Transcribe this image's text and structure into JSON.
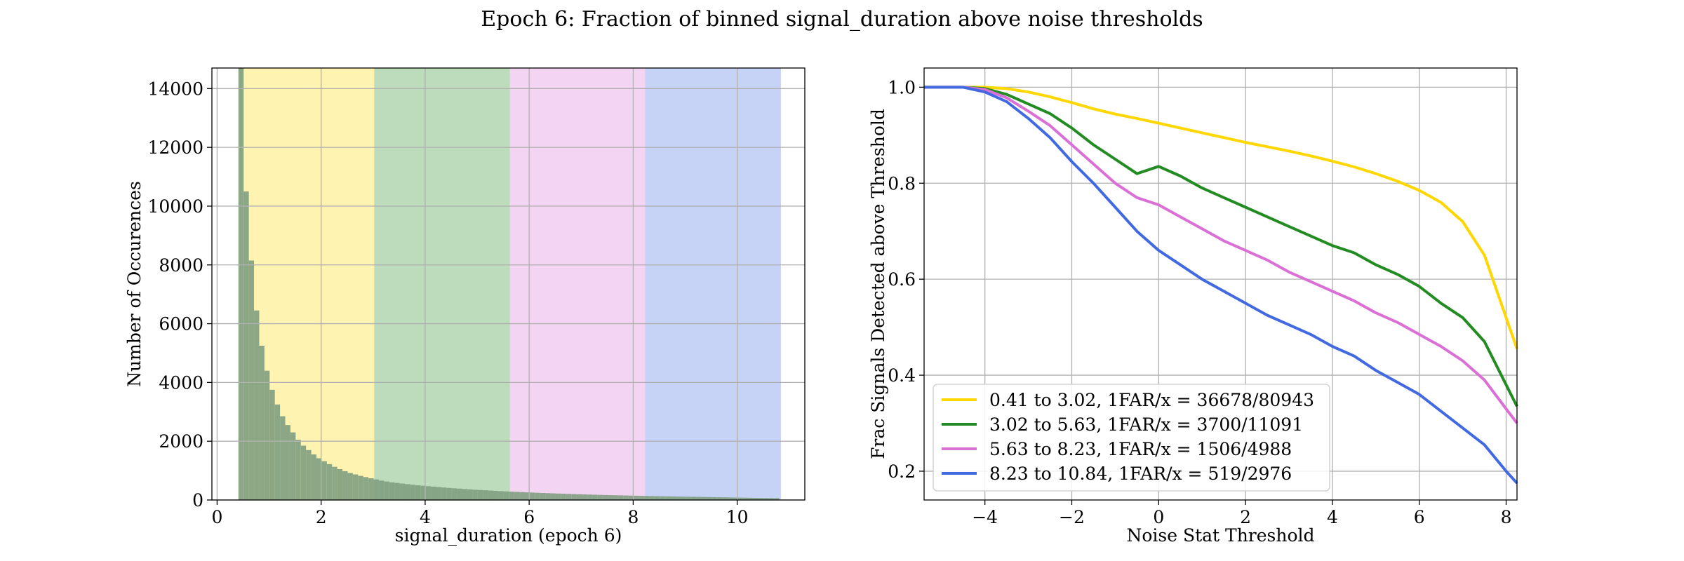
{
  "figure": {
    "title": "Epoch 6: Fraction of binned signal_duration above noise thresholds"
  },
  "chart_data": [
    {
      "type": "bar",
      "title": "",
      "xlabel": "signal_duration (epoch 6)",
      "ylabel": "Number of Occurences",
      "xlim": [
        -0.1,
        11.3
      ],
      "ylim": [
        0,
        14700
      ],
      "xticks": [
        0,
        2,
        4,
        6,
        8,
        10
      ],
      "yticks": [
        0,
        2000,
        4000,
        6000,
        8000,
        10000,
        12000,
        14000
      ],
      "grid": true,
      "histogram_color": "#7f9f7f",
      "threshold_bands": [
        {
          "from": 0.41,
          "to": 3.02,
          "color": "#ffd700"
        },
        {
          "from": 3.02,
          "to": 5.63,
          "color": "#228b22"
        },
        {
          "from": 5.63,
          "to": 8.23,
          "color": "#da70d6"
        },
        {
          "from": 8.23,
          "to": 10.84,
          "color": "#4169e1"
        }
      ],
      "bin_width": 0.1,
      "bins_start": 0.41,
      "bin_counts": [
        14700,
        10500,
        8150,
        6450,
        5250,
        4400,
        3750,
        3250,
        2850,
        2550,
        2300,
        2050,
        1850,
        1700,
        1550,
        1420,
        1320,
        1220,
        1130,
        1050,
        980,
        920,
        870,
        820,
        780,
        740,
        700,
        660,
        630,
        600,
        580,
        560,
        540,
        520,
        500,
        485,
        470,
        455,
        440,
        425,
        410,
        398,
        386,
        374,
        362,
        350,
        340,
        330,
        320,
        310,
        300,
        292,
        284,
        276,
        268,
        260,
        253,
        246,
        239,
        232,
        225,
        219,
        213,
        207,
        201,
        195,
        190,
        185,
        180,
        175,
        170,
        165,
        161,
        157,
        153,
        149,
        145,
        141,
        137,
        133,
        129,
        126,
        123,
        120,
        117,
        114,
        111,
        108,
        105,
        102,
        99,
        96,
        93,
        90,
        87,
        84,
        81,
        78,
        75,
        72,
        70,
        68,
        66,
        64
      ]
    },
    {
      "type": "line",
      "title": "",
      "xlabel": "Noise Stat Threshold",
      "ylabel": "Frac Signals Detected above Threshold",
      "xlim": [
        -5.4,
        8.25
      ],
      "ylim": [
        0.14,
        1.04
      ],
      "xticks": [
        -4,
        -2,
        0,
        2,
        4,
        6,
        8
      ],
      "xtick_labels": [
        "−4",
        "−2",
        "0",
        "2",
        "4",
        "6",
        "8"
      ],
      "yticks": [
        0.2,
        0.4,
        0.6,
        0.8,
        1.0
      ],
      "ytick_labels": [
        "0.2",
        "0.4",
        "0.6",
        "0.8",
        "1.0"
      ],
      "grid": true,
      "legend_position": "lower-left",
      "x": [
        -5.4,
        -5,
        -4.5,
        -4,
        -3.5,
        -3,
        -2.5,
        -2,
        -1.5,
        -1,
        -0.5,
        0,
        0.5,
        1,
        1.5,
        2,
        2.5,
        3,
        3.5,
        4,
        4.5,
        5,
        5.5,
        6,
        6.5,
        7,
        7.5,
        8,
        8.25
      ],
      "series": [
        {
          "name": "0.41 to 3.02, 1FAR/x = 36678/80943",
          "color": "#ffd700",
          "values": [
            1.0,
            1.0,
            1.0,
            1.0,
            0.997,
            0.99,
            0.98,
            0.968,
            0.955,
            0.944,
            0.935,
            0.925,
            0.915,
            0.905,
            0.895,
            0.885,
            0.876,
            0.867,
            0.857,
            0.846,
            0.834,
            0.82,
            0.804,
            0.785,
            0.76,
            0.72,
            0.65,
            0.52,
            0.455
          ]
        },
        {
          "name": "3.02 to 5.63, 1FAR/x = 3700/11091",
          "color": "#228b22",
          "values": [
            1.0,
            1.0,
            1.0,
            0.997,
            0.985,
            0.965,
            0.945,
            0.915,
            0.88,
            0.85,
            0.82,
            0.835,
            0.815,
            0.79,
            0.77,
            0.75,
            0.73,
            0.71,
            0.69,
            0.67,
            0.655,
            0.63,
            0.61,
            0.585,
            0.55,
            0.52,
            0.47,
            0.38,
            0.335
          ]
        },
        {
          "name": "5.63 to 8.23, 1FAR/x = 1506/4988",
          "color": "#da70d6",
          "values": [
            1.0,
            1.0,
            1.0,
            0.995,
            0.978,
            0.95,
            0.92,
            0.88,
            0.84,
            0.8,
            0.77,
            0.755,
            0.73,
            0.705,
            0.68,
            0.66,
            0.64,
            0.615,
            0.595,
            0.575,
            0.555,
            0.53,
            0.51,
            0.485,
            0.46,
            0.43,
            0.39,
            0.33,
            0.3
          ]
        },
        {
          "name": "8.23 to 10.84, 1FAR/x = 519/2976",
          "color": "#4169e1",
          "values": [
            1.0,
            1.0,
            1.0,
            0.99,
            0.97,
            0.935,
            0.895,
            0.845,
            0.8,
            0.75,
            0.7,
            0.66,
            0.63,
            0.6,
            0.575,
            0.55,
            0.525,
            0.505,
            0.485,
            0.46,
            0.44,
            0.41,
            0.385,
            0.36,
            0.325,
            0.29,
            0.255,
            0.2,
            0.175
          ]
        }
      ]
    }
  ]
}
